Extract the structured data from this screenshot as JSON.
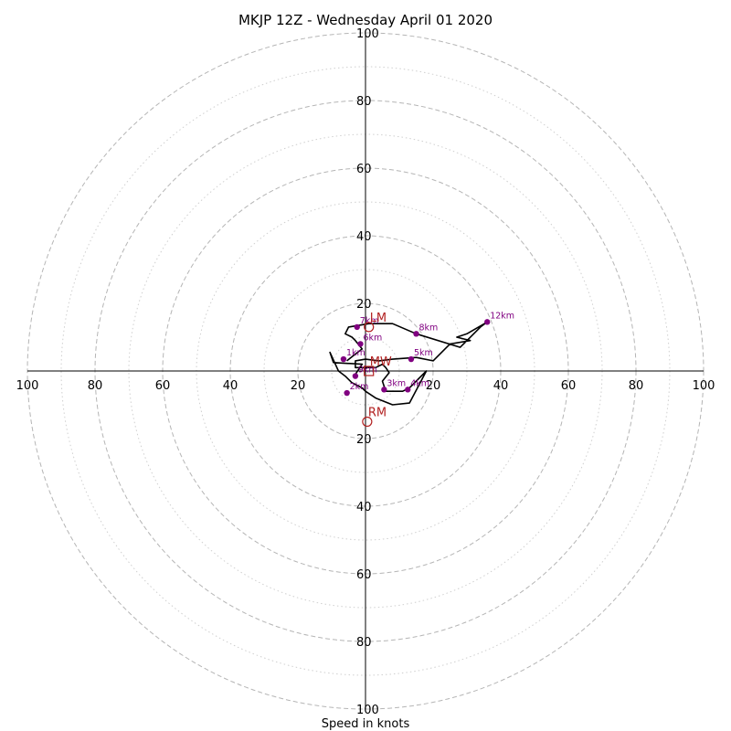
{
  "chart_data": {
    "type": "line",
    "title": "MKJP 12Z - Wednesday April 01 2020",
    "xlabel": "Speed in knots",
    "ylabel": "",
    "xlim": [
      -100,
      100
    ],
    "ylim": [
      -100,
      100
    ],
    "ring_values": [
      20,
      40,
      60,
      80,
      100
    ],
    "minor_ring_values": [
      10,
      30,
      50,
      70,
      90
    ],
    "x_tick_labels": [
      "100",
      "80",
      "60",
      "40",
      "20",
      "20",
      "40",
      "60",
      "80",
      "100"
    ],
    "y_tick_labels": [
      "100",
      "80",
      "60",
      "40",
      "20",
      "20",
      "40",
      "60",
      "80",
      "100"
    ],
    "trace": {
      "x": [
        -3,
        -1,
        -9.5,
        -10.5,
        -8,
        -6,
        -4,
        -1,
        0,
        3,
        8,
        13,
        18,
        13,
        11,
        6,
        5,
        7,
        6,
        5,
        3,
        -3,
        -3,
        0,
        4,
        8,
        15,
        20,
        25,
        31,
        27,
        30,
        36,
        34,
        28,
        15,
        8,
        1,
        -5,
        -6,
        -4,
        -3,
        -1,
        -3,
        -5.5
      ],
      "y": [
        -1,
        2,
        2.5,
        5.5,
        0,
        -1.5,
        -3.5,
        -5,
        -6,
        -8,
        -10,
        -9.5,
        0,
        -5,
        -6,
        -6,
        -3,
        -0.5,
        1,
        2,
        1,
        1,
        3,
        3.5,
        3,
        3.5,
        4,
        3,
        8,
        9,
        10,
        11,
        14.5,
        13,
        7,
        11,
        14,
        14,
        13,
        11,
        10,
        9,
        6.5,
        5,
        3
      ],
      "color": "#000000"
    },
    "height_markers": [
      {
        "label": "1km",
        "x": -6.5,
        "y": 3.5
      },
      {
        "label": "2km",
        "x": -5.5,
        "y": -6.5
      },
      {
        "label": "3km",
        "x": 5.5,
        "y": -5.5
      },
      {
        "label": "4km",
        "x": 12.5,
        "y": -5.5
      },
      {
        "label": "5km",
        "x": 13.5,
        "y": 3.5
      },
      {
        "label": "6km",
        "x": -1.5,
        "y": 8
      },
      {
        "label": "7km",
        "x": -2.5,
        "y": 13
      },
      {
        "label": "8km",
        "x": 15,
        "y": 11
      },
      {
        "label": "9km",
        "x": -3,
        "y": -1.5
      },
      {
        "label": "12km",
        "x": 36,
        "y": 14.5
      }
    ],
    "marker_color": "#800080",
    "storm_motion": [
      {
        "label": "LM",
        "x": 1,
        "y": 13
      },
      {
        "label": "MW",
        "x": 1,
        "y": 0
      },
      {
        "label": "RM",
        "x": 0.5,
        "y": -15
      }
    ],
    "storm_color": "#b22222"
  }
}
